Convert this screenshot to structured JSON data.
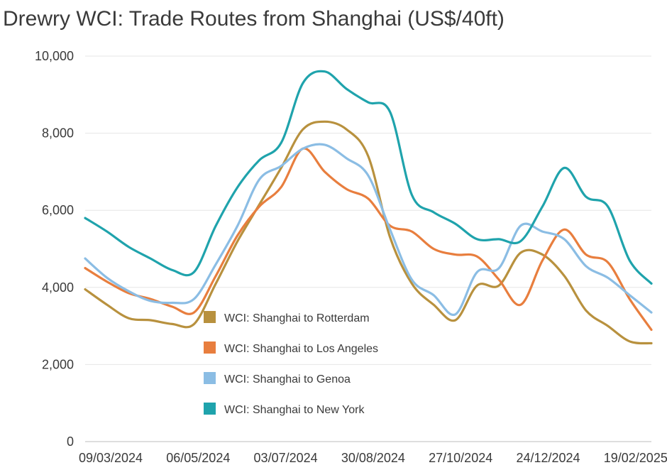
{
  "chart_data": {
    "type": "line",
    "title": "Drewry WCI: Trade Routes from Shanghai (US$/40ft)",
    "xlabel": "",
    "ylabel": "",
    "ylim": [
      0,
      10000
    ],
    "grid": true,
    "legend_position": "center-left",
    "x_tick_labels": [
      "09/03/2024",
      "06/05/2024",
      "03/07/2024",
      "30/08/2024",
      "27/10/2024",
      "24/12/2024",
      "19/02/2025"
    ],
    "y_tick_labels": [
      "0",
      "2,000",
      "4,000",
      "6,000",
      "8,000",
      "10,000"
    ],
    "y_ticks": [
      0,
      2000,
      4000,
      6000,
      8000,
      10000
    ],
    "x_range": [
      "2024-03-07",
      "2025-03-06"
    ],
    "series": [
      {
        "name": "WCI: Shanghai to Rotterdam",
        "color": "#b8913e",
        "points": [
          [
            "2024-03-07",
            3950
          ],
          [
            "2024-03-21",
            3550
          ],
          [
            "2024-04-04",
            3200
          ],
          [
            "2024-04-18",
            3150
          ],
          [
            "2024-05-02",
            3050
          ],
          [
            "2024-05-16",
            3050
          ],
          [
            "2024-05-30",
            4100
          ],
          [
            "2024-06-13",
            5200
          ],
          [
            "2024-06-27",
            6150
          ],
          [
            "2024-07-11",
            7100
          ],
          [
            "2024-07-25",
            8100
          ],
          [
            "2024-08-08",
            8300
          ],
          [
            "2024-08-22",
            8100
          ],
          [
            "2024-09-05",
            7400
          ],
          [
            "2024-09-19",
            5300
          ],
          [
            "2024-10-03",
            4100
          ],
          [
            "2024-10-17",
            3550
          ],
          [
            "2024-10-31",
            3150
          ],
          [
            "2024-11-14",
            4050
          ],
          [
            "2024-11-28",
            4050
          ],
          [
            "2024-12-12",
            4900
          ],
          [
            "2024-12-26",
            4850
          ],
          [
            "2025-01-09",
            4300
          ],
          [
            "2025-01-23",
            3400
          ],
          [
            "2025-02-06",
            3000
          ],
          [
            "2025-02-20",
            2600
          ],
          [
            "2025-03-06",
            2550
          ]
        ]
      },
      {
        "name": "WCI: Shanghai to Los Angeles",
        "color": "#e87e3e",
        "points": [
          [
            "2024-03-07",
            4500
          ],
          [
            "2024-03-21",
            4150
          ],
          [
            "2024-04-04",
            3850
          ],
          [
            "2024-04-18",
            3700
          ],
          [
            "2024-05-02",
            3500
          ],
          [
            "2024-05-16",
            3350
          ],
          [
            "2024-05-30",
            4300
          ],
          [
            "2024-06-13",
            5350
          ],
          [
            "2024-06-27",
            6100
          ],
          [
            "2024-07-11",
            6600
          ],
          [
            "2024-07-25",
            7600
          ],
          [
            "2024-08-08",
            7000
          ],
          [
            "2024-08-22",
            6550
          ],
          [
            "2024-09-05",
            6300
          ],
          [
            "2024-09-19",
            5600
          ],
          [
            "2024-10-03",
            5450
          ],
          [
            "2024-10-17",
            5000
          ],
          [
            "2024-10-31",
            4850
          ],
          [
            "2024-11-14",
            4800
          ],
          [
            "2024-11-28",
            4200
          ],
          [
            "2024-12-12",
            3550
          ],
          [
            "2024-12-26",
            4700
          ],
          [
            "2025-01-09",
            5500
          ],
          [
            "2025-01-23",
            4850
          ],
          [
            "2025-02-06",
            4650
          ],
          [
            "2025-02-20",
            3700
          ],
          [
            "2025-03-06",
            2900
          ]
        ]
      },
      {
        "name": "WCI: Shanghai to Genoa",
        "color": "#8bbde4",
        "points": [
          [
            "2024-03-07",
            4750
          ],
          [
            "2024-03-21",
            4250
          ],
          [
            "2024-04-04",
            3900
          ],
          [
            "2024-04-18",
            3650
          ],
          [
            "2024-05-02",
            3600
          ],
          [
            "2024-05-16",
            3700
          ],
          [
            "2024-05-30",
            4600
          ],
          [
            "2024-06-13",
            5600
          ],
          [
            "2024-06-27",
            6800
          ],
          [
            "2024-07-11",
            7150
          ],
          [
            "2024-07-25",
            7600
          ],
          [
            "2024-08-08",
            7700
          ],
          [
            "2024-08-22",
            7350
          ],
          [
            "2024-09-05",
            6900
          ],
          [
            "2024-09-19",
            5500
          ],
          [
            "2024-10-03",
            4200
          ],
          [
            "2024-10-17",
            3800
          ],
          [
            "2024-10-31",
            3300
          ],
          [
            "2024-11-14",
            4400
          ],
          [
            "2024-11-28",
            4500
          ],
          [
            "2024-12-12",
            5600
          ],
          [
            "2024-12-26",
            5450
          ],
          [
            "2025-01-09",
            5250
          ],
          [
            "2025-01-23",
            4550
          ],
          [
            "2025-02-06",
            4250
          ],
          [
            "2025-02-20",
            3800
          ],
          [
            "2025-03-06",
            3350
          ]
        ]
      },
      {
        "name": "WCI: Shanghai to New York",
        "color": "#1fa3ac",
        "points": [
          [
            "2024-03-07",
            5800
          ],
          [
            "2024-03-21",
            5450
          ],
          [
            "2024-04-04",
            5050
          ],
          [
            "2024-04-18",
            4750
          ],
          [
            "2024-05-02",
            4450
          ],
          [
            "2024-05-16",
            4400
          ],
          [
            "2024-05-30",
            5600
          ],
          [
            "2024-06-13",
            6600
          ],
          [
            "2024-06-27",
            7300
          ],
          [
            "2024-07-11",
            7750
          ],
          [
            "2024-07-25",
            9300
          ],
          [
            "2024-08-08",
            9600
          ],
          [
            "2024-08-22",
            9150
          ],
          [
            "2024-09-05",
            8800
          ],
          [
            "2024-09-19",
            8550
          ],
          [
            "2024-10-03",
            6400
          ],
          [
            "2024-10-17",
            5950
          ],
          [
            "2024-10-31",
            5650
          ],
          [
            "2024-11-14",
            5250
          ],
          [
            "2024-11-28",
            5250
          ],
          [
            "2024-12-12",
            5200
          ],
          [
            "2024-12-26",
            6100
          ],
          [
            "2025-01-09",
            7100
          ],
          [
            "2025-01-23",
            6350
          ],
          [
            "2025-02-06",
            6100
          ],
          [
            "2025-02-20",
            4700
          ],
          [
            "2025-03-06",
            4100
          ]
        ]
      }
    ]
  }
}
